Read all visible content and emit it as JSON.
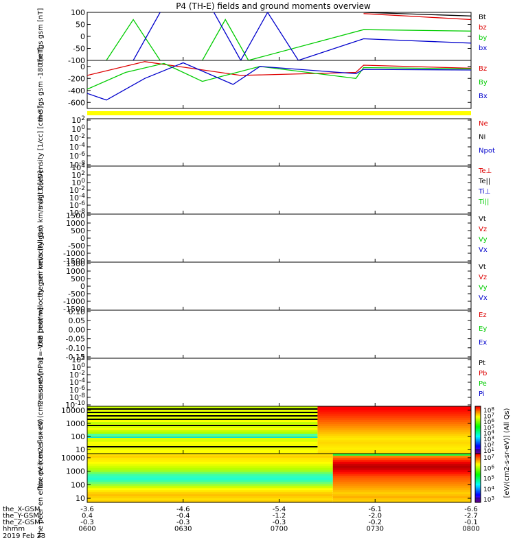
{
  "title": "P4 (TH-E) fields and ground moments overview",
  "footer": {
    "rows": [
      {
        "label": "the_X-GSM",
        "values": [
          "-3.6",
          "-4.6",
          "-5.4",
          "-6.1",
          "-6.6"
        ]
      },
      {
        "label": "the_Y-GSM",
        "values": [
          "0.4",
          "-0.4",
          "-1.2",
          "-2.0",
          "-2.7"
        ]
      },
      {
        "label": "the_Z-GSM",
        "values": [
          "-0.3",
          "-0.3",
          "-0.3",
          "-0.2",
          "-0.1"
        ]
      },
      {
        "label": "hhmm",
        "values": [
          "0600",
          "0630",
          "0700",
          "0730",
          "0800"
        ]
      }
    ],
    "date": "2019 Feb 23"
  },
  "colors": {
    "black": "#000000",
    "red": "#dd0000",
    "green": "#00cc00",
    "blue": "#0000cc",
    "yellow": "#ffff00"
  },
  "colorbar": {
    "label": "[eV/(cm2-s-sr-eV)] (All Qs)",
    "ticks_top": [
      "10^8",
      "10^7",
      "10^6",
      "10^5",
      "10^4",
      "10^3",
      "10^2",
      "10^1"
    ],
    "ticks_bottom": [
      "10^7",
      "10^6",
      "10^5",
      "10^4",
      "10^3"
    ]
  },
  "chart_data": [
    {
      "type": "line",
      "ylabel": "the fgs gsm [nT]",
      "ylim": [
        -100,
        100
      ],
      "yticks": [
        "100",
        "50",
        "0",
        "-50",
        "-100"
      ],
      "legend": [
        {
          "name": "Bt",
          "color": "black"
        },
        {
          "name": "bz",
          "color": "red"
        },
        {
          "name": "by",
          "color": "green"
        },
        {
          "name": "bx",
          "color": "blue"
        }
      ],
      "series": [
        {
          "name": "Bt",
          "x": [
            0.0,
            0.5,
            0.71,
            0.72,
            1.0
          ],
          "y": [
            null,
            null,
            null,
            100,
            85
          ]
        },
        {
          "name": "bz",
          "x": [
            0.72,
            1.0
          ],
          "y": [
            95,
            70
          ]
        },
        {
          "name": "by",
          "note_shape": "sinusoid",
          "x": [
            0.05,
            0.12,
            0.19,
            0.24,
            0.3,
            0.36,
            0.42,
            0.72,
            1.0
          ],
          "y": [
            -100,
            70,
            -100,
            null,
            -100,
            70,
            -100,
            28,
            22
          ]
        },
        {
          "name": "bx",
          "x": [
            0.12,
            0.19,
            0.26,
            0.33,
            0.4,
            0.47,
            0.55,
            0.72,
            1.0
          ],
          "y": [
            -100,
            100,
            null,
            100,
            -100,
            100,
            -100,
            -10,
            -28
          ]
        }
      ]
    },
    {
      "type": "line",
      "ylabel": "the fgs gsm -180 [nT]",
      "ylim": [
        -700,
        100
      ],
      "yticks": [
        "0",
        "-200",
        "-400",
        "-600"
      ],
      "legend": [
        {
          "name": "Bz",
          "color": "red"
        },
        {
          "name": "By",
          "color": "green"
        },
        {
          "name": "Bx",
          "color": "blue"
        }
      ],
      "series": [
        {
          "name": "Bz",
          "x": [
            0.0,
            0.15,
            0.4,
            0.7,
            0.72,
            1.0
          ],
          "y": [
            -150,
            80,
            -150,
            -100,
            20,
            -30
          ]
        },
        {
          "name": "By",
          "x": [
            0.0,
            0.1,
            0.2,
            0.3,
            0.45,
            0.7,
            0.72,
            1.0
          ],
          "y": [
            -380,
            -100,
            50,
            -250,
            0,
            -200,
            -20,
            -40
          ]
        },
        {
          "name": "Bx",
          "x": [
            0.0,
            0.05,
            0.15,
            0.25,
            0.38,
            0.45,
            0.7,
            0.72,
            1.0
          ],
          "y": [
            -450,
            -560,
            -200,
            60,
            -300,
            0,
            -120,
            -50,
            -60
          ]
        }
      ]
    },
    {
      "type": "line",
      "ylabel": "Density [1/cc] [cm-3]",
      "ylim": [
        1e-09,
        100
      ],
      "scale": "log",
      "yticks": [
        "10^2",
        "10^0",
        "10^-2",
        "10^-4",
        "10^-6",
        "10^-8"
      ],
      "legend": [
        {
          "name": "Ne",
          "color": "red"
        },
        {
          "name": "Ni",
          "color": "black"
        },
        {
          "name": "Npot",
          "color": "blue"
        }
      ]
    },
    {
      "type": "line",
      "ylabel": "magt3 [eV]",
      "ylim": [
        1e-09,
        10000
      ],
      "scale": "log",
      "yticks": [
        "10^4",
        "10^2",
        "10^0",
        "10^-2",
        "10^-4",
        "10^-6",
        "10^-8"
      ],
      "legend": [
        {
          "name": "Te⊥",
          "color": "red"
        },
        {
          "name": "Te||",
          "color": "black"
        },
        {
          "name": "Ti⊥",
          "color": "blue"
        },
        {
          "name": "Ti||",
          "color": "green"
        }
      ]
    },
    {
      "type": "line",
      "ylabel": "the peir velocity gsm km/s (All Qs)",
      "ylim": [
        -1500,
        1500
      ],
      "yticks": [
        "1500",
        "1000",
        "500",
        "0",
        "-500",
        "-1000",
        "-1500"
      ],
      "legend": [
        {
          "name": "Vt",
          "color": "black"
        },
        {
          "name": "Vz",
          "color": "red"
        },
        {
          "name": "Vy",
          "color": "green"
        },
        {
          "name": "Vx",
          "color": "blue"
        }
      ]
    },
    {
      "type": "line",
      "ylabel": "the peer velocity gsm km/s (All Qs)",
      "ylim": [
        -1500,
        1500
      ],
      "yticks": [
        "1500",
        "1000",
        "500",
        "0",
        "-500",
        "-1000",
        "-1500"
      ],
      "legend": [
        {
          "name": "Vt",
          "color": "black"
        },
        {
          "name": "Vz",
          "color": "red"
        },
        {
          "name": "Vy",
          "color": "green"
        },
        {
          "name": "Vx",
          "color": "blue"
        }
      ]
    },
    {
      "type": "line",
      "ylabel": "E=-VxB [mV/m]",
      "ylim": [
        -0.15,
        0.1
      ],
      "yticks": [
        "0.10",
        "0.05",
        "0.00",
        "-0.05",
        "-0.10",
        "-0.15"
      ],
      "legend": [
        {
          "name": "Ez",
          "color": "red"
        },
        {
          "name": "Ey",
          "color": "green"
        },
        {
          "name": "Ex",
          "color": "blue"
        }
      ]
    },
    {
      "type": "line",
      "ylabel": "Pressure [nPa]",
      "ylim": [
        1e-11,
        100
      ],
      "scale": "log",
      "yticks": [
        "10^2",
        "10^0",
        "10^-2",
        "10^-4",
        "10^-6",
        "10^-8",
        "10^-10"
      ],
      "legend": [
        {
          "name": "Pt",
          "color": "black"
        },
        {
          "name": "Pb",
          "color": "red"
        },
        {
          "name": "Pe",
          "color": "green"
        },
        {
          "name": "Pi",
          "color": "blue"
        }
      ]
    },
    {
      "type": "heatmap",
      "ylabel": "the peir en eflux eV (cm2-s-sr-eV)",
      "scale": "log",
      "ylim": [
        5,
        20000
      ],
      "yticks": [
        "10000",
        "1000",
        "100",
        "10"
      ],
      "switch_x": 0.6
    },
    {
      "type": "heatmap",
      "ylabel": "the peer en eflux eV (cm2-s-sr-eV)",
      "scale": "log",
      "ylim": [
        5,
        20000
      ],
      "yticks": [
        "10000",
        "1000",
        "100",
        "10"
      ],
      "switch_x": 0.64
    }
  ]
}
